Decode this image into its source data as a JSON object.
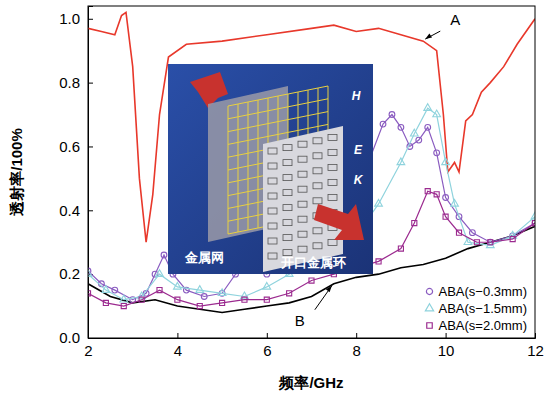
{
  "chart_data": {
    "type": "line",
    "x_label": "频率/GHz",
    "y_label": "透射率/100%",
    "xlim": [
      2,
      12
    ],
    "xticks": [
      2,
      4,
      6,
      8,
      10,
      12
    ],
    "ylim": [
      0,
      1.04
    ],
    "yticks": [
      {
        "value": 0,
        "label": "0.0"
      },
      {
        "value": 0.2,
        "label": "0.2"
      },
      {
        "value": 0.4,
        "label": "0.4"
      },
      {
        "value": 0.6,
        "label": "0.6"
      },
      {
        "value": 0.8,
        "label": "0.8"
      },
      {
        "value": 1.0,
        "label": "1.0"
      }
    ],
    "grid": false,
    "legend": "lower right",
    "inset_labels": [
      "金属网",
      "开口金属环",
      "H",
      "E",
      "K"
    ],
    "series": [
      {
        "name": "A",
        "color": "#e8382b",
        "marker": "none",
        "line_style": "solid",
        "x": [
          2,
          2.3,
          2.6,
          2.75,
          2.85,
          3.0,
          3.15,
          3.3,
          3.45,
          3.6,
          3.8,
          4.2,
          5,
          6,
          7,
          7.5,
          8,
          8.5,
          9,
          9.5,
          9.8,
          9.95,
          10.05,
          10.2,
          10.3,
          10.45,
          10.6,
          10.8,
          11,
          11.3,
          11.6,
          12
        ],
        "values": [
          0.97,
          0.96,
          0.95,
          1.01,
          1.02,
          0.85,
          0.5,
          0.3,
          0.45,
          0.7,
          0.88,
          0.92,
          0.93,
          0.95,
          0.97,
          0.98,
          0.96,
          0.97,
          0.95,
          0.93,
          0.9,
          0.7,
          0.52,
          0.55,
          0.52,
          0.68,
          0.7,
          0.77,
          0.8,
          0.85,
          0.92,
          1.0
        ]
      },
      {
        "name": "B",
        "color": "#000000",
        "marker": "none",
        "line_style": "solid",
        "x": [
          2,
          2.5,
          3,
          3.5,
          4,
          4.5,
          5,
          5.5,
          6,
          6.5,
          7,
          7.5,
          8,
          8.5,
          9,
          9.5,
          10,
          10.5,
          11,
          11.5,
          12
        ],
        "values": [
          0.17,
          0.13,
          0.11,
          0.12,
          0.1,
          0.09,
          0.08,
          0.09,
          0.1,
          0.11,
          0.13,
          0.17,
          0.19,
          0.2,
          0.22,
          0.23,
          0.25,
          0.28,
          0.3,
          0.32,
          0.35
        ]
      },
      {
        "name": "ABA(s−0.3mm)",
        "color": "#8a5cc0",
        "marker": "circle",
        "line_style": "solid",
        "x": [
          2,
          2.3,
          2.6,
          3,
          3.3,
          3.5,
          3.7,
          3.9,
          4.2,
          4.6,
          5,
          5.3,
          5.6,
          6,
          6.3,
          6.6,
          7,
          7.5,
          8,
          8.3,
          8.6,
          8.8,
          9.0,
          9.2,
          9.4,
          9.6,
          9.8,
          10,
          10.3,
          10.6,
          11,
          11.5,
          12
        ],
        "values": [
          0.21,
          0.17,
          0.15,
          0.12,
          0.14,
          0.2,
          0.26,
          0.2,
          0.15,
          0.13,
          0.14,
          0.2,
          0.22,
          0.2,
          0.25,
          0.3,
          0.34,
          0.4,
          0.48,
          0.56,
          0.67,
          0.7,
          0.66,
          0.6,
          0.62,
          0.66,
          0.58,
          0.44,
          0.38,
          0.33,
          0.3,
          0.32,
          0.36
        ]
      },
      {
        "name": "ABA(s−1.5mm)",
        "color": "#8fd3dd",
        "marker": "triangle",
        "line_style": "solid",
        "x": [
          2,
          2.4,
          2.8,
          3.2,
          3.6,
          4,
          4.5,
          5,
          5.5,
          6,
          6.5,
          7,
          7.5,
          8,
          8.5,
          9,
          9.3,
          9.6,
          9.8,
          10,
          10.2,
          10.5,
          11,
          11.5,
          12
        ],
        "values": [
          0.2,
          0.15,
          0.12,
          0.13,
          0.2,
          0.16,
          0.15,
          0.14,
          0.13,
          0.16,
          0.2,
          0.24,
          0.27,
          0.32,
          0.42,
          0.55,
          0.64,
          0.72,
          0.7,
          0.55,
          0.42,
          0.3,
          0.29,
          0.32,
          0.38
        ]
      },
      {
        "name": "ABA(s=2.0mm)",
        "color": "#9b2a8f",
        "marker": "square",
        "line_style": "solid",
        "x": [
          2,
          2.4,
          2.8,
          3.2,
          3.6,
          4,
          4.5,
          5,
          5.5,
          6,
          6.5,
          7,
          7.5,
          8,
          8.5,
          9,
          9.3,
          9.6,
          9.8,
          10,
          10.3,
          10.7,
          11,
          11.5,
          12
        ],
        "values": [
          0.14,
          0.11,
          0.1,
          0.12,
          0.15,
          0.12,
          0.1,
          0.11,
          0.12,
          0.12,
          0.14,
          0.18,
          0.2,
          0.22,
          0.24,
          0.28,
          0.36,
          0.46,
          0.45,
          0.38,
          0.33,
          0.3,
          0.3,
          0.31,
          0.36
        ]
      }
    ]
  }
}
